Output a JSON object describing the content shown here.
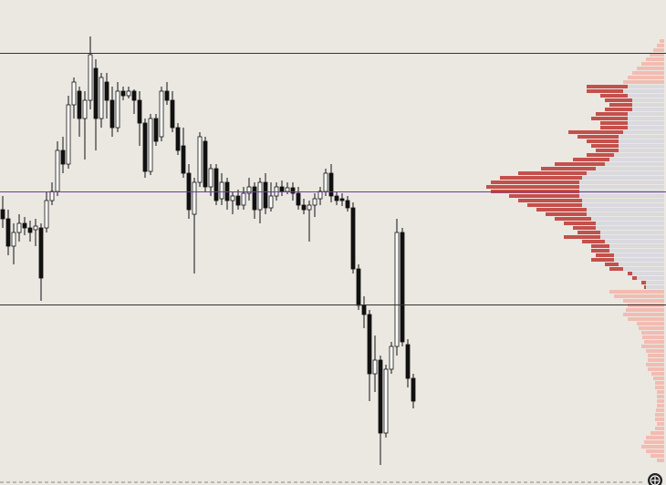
{
  "chart_data": {
    "type": "candlestick",
    "ylim": [
      0,
      532
    ],
    "open": [
      302,
      292,
      262,
      277,
      287,
      282,
      280,
      282,
      282,
      312,
      322,
      367,
      352,
      417,
      432,
      402,
      422,
      457,
      402,
      442,
      422,
      392,
      432,
      427,
      432,
      422,
      397,
      344,
      402,
      382,
      432,
      422,
      392,
      372,
      342,
      297,
      332,
      377,
      327,
      347,
      314,
      332,
      312,
      317,
      307,
      320,
      327,
      302,
      332,
      304,
      317,
      327,
      322,
      326,
      320,
      307,
      302,
      307,
      314,
      322,
      342,
      317,
      314,
      312,
      304,
      237,
      197,
      187,
      122,
      137,
      57,
      127,
      152,
      277,
      154,
      117
    ],
    "close": [
      292,
      262,
      277,
      287,
      282,
      277,
      284,
      227,
      312,
      322,
      367,
      352,
      417,
      442,
      402,
      422,
      472,
      402,
      447,
      422,
      392,
      432,
      427,
      432,
      422,
      397,
      344,
      402,
      377,
      432,
      422,
      392,
      367,
      342,
      302,
      332,
      382,
      327,
      347,
      312,
      332,
      312,
      317,
      307,
      320,
      327,
      302,
      332,
      304,
      317,
      327,
      322,
      326,
      320,
      307,
      302,
      307,
      314,
      322,
      342,
      317,
      312,
      312,
      304,
      237,
      197,
      187,
      122,
      137,
      57,
      127,
      152,
      277,
      157,
      117,
      92
    ],
    "high": [
      317,
      302,
      287,
      297,
      294,
      290,
      292,
      287,
      322,
      332,
      377,
      382,
      427,
      447,
      437,
      432,
      492,
      467,
      452,
      452,
      437,
      442,
      437,
      437,
      434,
      432,
      402,
      407,
      407,
      437,
      442,
      432,
      397,
      392,
      352,
      337,
      387,
      382,
      352,
      352,
      342,
      337,
      322,
      324,
      327,
      337,
      332,
      337,
      342,
      332,
      332,
      334,
      332,
      332,
      327,
      314,
      312,
      320,
      327,
      347,
      352,
      322,
      320,
      317,
      310,
      242,
      207,
      192,
      164,
      142,
      132,
      157,
      292,
      282,
      160,
      122
    ],
    "low": [
      282,
      252,
      242,
      267,
      274,
      267,
      262,
      202,
      277,
      307,
      317,
      342,
      347,
      402,
      382,
      357,
      412,
      367,
      392,
      402,
      382,
      387,
      422,
      424,
      407,
      372,
      337,
      340,
      372,
      377,
      417,
      387,
      362,
      337,
      292,
      232,
      327,
      322,
      317,
      307,
      307,
      302,
      297,
      302,
      302,
      312,
      292,
      287,
      297,
      300,
      312,
      317,
      319,
      312,
      302,
      297,
      267,
      294,
      307,
      317,
      310,
      307,
      306,
      300,
      232,
      192,
      172,
      92,
      102,
      22,
      52,
      122,
      142,
      152,
      107,
      84
    ],
    "levels": [
      {
        "value": 474,
        "color": "#333333"
      },
      {
        "value": 322,
        "color": "#6a3d9a"
      },
      {
        "value": 198,
        "color": "#333333"
      }
    ],
    "profile": {
      "prices": [
        487,
        482,
        477,
        472,
        467,
        462,
        457,
        452,
        447,
        442,
        437,
        432,
        427,
        422,
        417,
        412,
        407,
        402,
        397,
        392,
        387,
        382,
        377,
        372,
        367,
        362,
        357,
        352,
        347,
        342,
        337,
        332,
        327,
        322,
        317,
        312,
        307,
        302,
        297,
        292,
        287,
        282,
        277,
        272,
        267,
        262,
        257,
        252,
        247,
        242,
        237,
        232,
        227,
        222,
        217,
        212,
        207,
        202,
        197,
        192,
        187,
        182,
        177,
        172,
        167,
        162,
        157,
        152,
        147,
        142,
        137,
        132,
        127,
        122,
        117,
        112,
        107,
        102,
        97,
        92,
        87,
        82,
        77,
        72,
        67,
        62,
        57,
        52,
        47,
        42,
        37,
        32,
        27
      ],
      "red": [
        5,
        8,
        12,
        16,
        20,
        25,
        30,
        35,
        40,
        45,
        45,
        40,
        30,
        30,
        25,
        30,
        35,
        40,
        30,
        30,
        60,
        45,
        35,
        30,
        25,
        30,
        40,
        55,
        60,
        75,
        90,
        97,
        102,
        97,
        77,
        70,
        60,
        55,
        45,
        40,
        35,
        25,
        25,
        40,
        25,
        20,
        20,
        20,
        25,
        15,
        15,
        5,
        5,
        5,
        2,
        60,
        55,
        45,
        40,
        42,
        45,
        40,
        30,
        28,
        25,
        24,
        22,
        25,
        20,
        18,
        18,
        20,
        18,
        14,
        12,
        10,
        10,
        8,
        8,
        8,
        8,
        9,
        10,
        10,
        8,
        10,
        15,
        20,
        22,
        25,
        20,
        15,
        8
      ],
      "grey": [
        0,
        0,
        0,
        0,
        0,
        0,
        0,
        0,
        0,
        0,
        40,
        45,
        40,
        35,
        35,
        35,
        40,
        40,
        40,
        40,
        45,
        50,
        50,
        50,
        50,
        55,
        60,
        65,
        75,
        85,
        90,
        93,
        93,
        93,
        93,
        90,
        90,
        85,
        85,
        80,
        75,
        75,
        70,
        70,
        65,
        60,
        60,
        55,
        55,
        50,
        45,
        35,
        30,
        20,
        20,
        0,
        0,
        0,
        0,
        0,
        0,
        0,
        0,
        0,
        0,
        0,
        0,
        0,
        0,
        0,
        0,
        0,
        0,
        0,
        0,
        0,
        0,
        0,
        0,
        0,
        0,
        0,
        0,
        0,
        0,
        0,
        0,
        0,
        0,
        0,
        0,
        0,
        0
      ],
      "value_area": [
        217,
        437
      ],
      "inside_color": "#c4504c",
      "outside_color": "#f2bcb2",
      "grey_color": "#d9d9de"
    }
  }
}
